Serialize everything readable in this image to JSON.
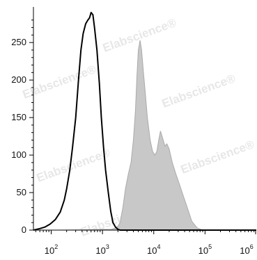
{
  "chart_data": {
    "type": "area",
    "x_scale": "log",
    "xlim": [
      45,
      1000000
    ],
    "ylim": [
      0,
      290
    ],
    "y_ticks": [
      0,
      50,
      100,
      150,
      200,
      250
    ],
    "x_ticks": [
      {
        "value": 100,
        "label": "10",
        "exp": "2"
      },
      {
        "value": 1000,
        "label": "10",
        "exp": "3"
      },
      {
        "value": 10000,
        "label": "10",
        "exp": "4"
      },
      {
        "value": 100000,
        "label": "10",
        "exp": "5"
      },
      {
        "value": 1000000,
        "label": "10",
        "exp": "6"
      }
    ],
    "grid": false,
    "series": [
      {
        "style": "filled",
        "fill": "#c8c8c8",
        "stroke": "#aaaaaa",
        "points": [
          [
            45,
            0
          ],
          [
            150,
            0
          ],
          [
            1500,
            1
          ],
          [
            1800,
            3
          ],
          [
            2000,
            5
          ],
          [
            2200,
            10
          ],
          [
            2500,
            30
          ],
          [
            2800,
            55
          ],
          [
            3200,
            75
          ],
          [
            3600,
            90
          ],
          [
            4000,
            120
          ],
          [
            4400,
            160
          ],
          [
            4700,
            205
          ],
          [
            5000,
            240
          ],
          [
            5400,
            253
          ],
          [
            5800,
            240
          ],
          [
            6200,
            215
          ],
          [
            6800,
            185
          ],
          [
            7500,
            150
          ],
          [
            8500,
            120
          ],
          [
            9500,
            105
          ],
          [
            10500,
            100
          ],
          [
            11500,
            105
          ],
          [
            12500,
            120
          ],
          [
            13500,
            132
          ],
          [
            15000,
            122
          ],
          [
            16500,
            112
          ],
          [
            18000,
            115
          ],
          [
            20000,
            108
          ],
          [
            23000,
            90
          ],
          [
            27000,
            75
          ],
          [
            32000,
            60
          ],
          [
            38000,
            45
          ],
          [
            45000,
            30
          ],
          [
            55000,
            12
          ],
          [
            70000,
            3
          ],
          [
            90000,
            0
          ],
          [
            1000000,
            0
          ]
        ]
      },
      {
        "style": "line",
        "stroke": "#000000",
        "points": [
          [
            45,
            0
          ],
          [
            60,
            2
          ],
          [
            75,
            4
          ],
          [
            95,
            8
          ],
          [
            120,
            14
          ],
          [
            150,
            24
          ],
          [
            180,
            40
          ],
          [
            200,
            55
          ],
          [
            230,
            80
          ],
          [
            260,
            110
          ],
          [
            300,
            150
          ],
          [
            340,
            200
          ],
          [
            380,
            240
          ],
          [
            420,
            262
          ],
          [
            470,
            275
          ],
          [
            520,
            280
          ],
          [
            560,
            283
          ],
          [
            600,
            290
          ],
          [
            650,
            287
          ],
          [
            700,
            270
          ],
          [
            780,
            240
          ],
          [
            870,
            195
          ],
          [
            950,
            150
          ],
          [
            1050,
            110
          ],
          [
            1150,
            80
          ],
          [
            1300,
            50
          ],
          [
            1450,
            25
          ],
          [
            1600,
            10
          ],
          [
            1800,
            4
          ],
          [
            2000,
            1
          ],
          [
            2200,
            0
          ],
          [
            1000000,
            0
          ]
        ]
      }
    ]
  },
  "watermark": {
    "text": "Elabscience",
    "mark": "®",
    "color": "#e3e3e3"
  }
}
